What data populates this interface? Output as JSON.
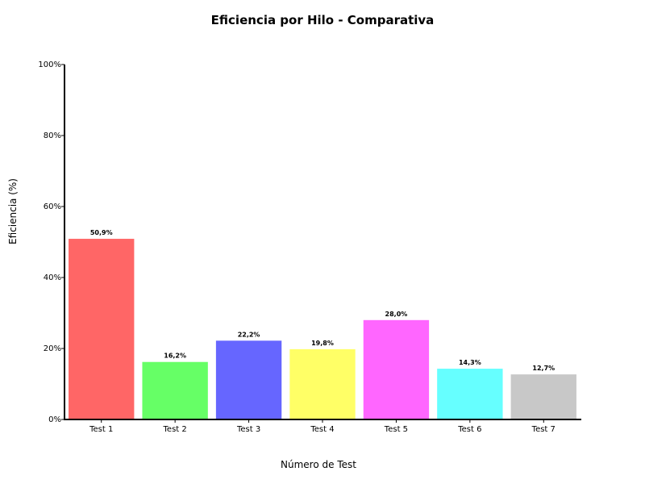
{
  "chart_data": {
    "type": "bar",
    "title": "Eficiencia por Hilo - Comparativa",
    "xlabel": "Número de Test",
    "ylabel": "Eficiencia (%)",
    "ylim": [
      0,
      100
    ],
    "y_ticks": [
      0,
      20,
      40,
      60,
      80,
      100
    ],
    "y_tick_labels": [
      "0%",
      "20%",
      "40%",
      "60%",
      "80%",
      "100%"
    ],
    "categories": [
      "Test 1",
      "Test 2",
      "Test 3",
      "Test 4",
      "Test 5",
      "Test 6",
      "Test 7"
    ],
    "values": [
      50.9,
      16.2,
      22.2,
      19.8,
      28.0,
      14.3,
      12.7
    ],
    "value_labels": [
      "50,9%",
      "16,2%",
      "22,2%",
      "19,8%",
      "28,0%",
      "14,3%",
      "12,7%"
    ],
    "colors": [
      "#ff6666",
      "#66ff66",
      "#6666ff",
      "#ffff66",
      "#ff66ff",
      "#66ffff",
      "#c8c8c8"
    ],
    "grid": false,
    "legend": "none"
  }
}
